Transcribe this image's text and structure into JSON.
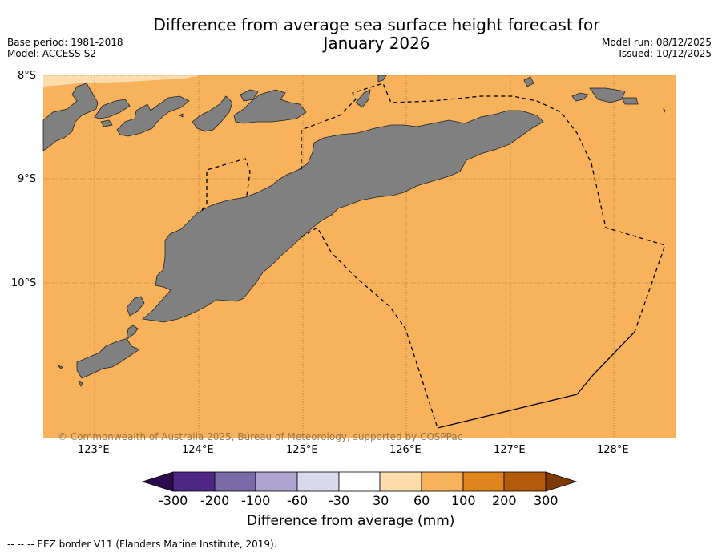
{
  "header": {
    "title_line1": "Difference from average sea surface height forecast for",
    "title_line2": "January 2026",
    "base_period": "Base period: 1981-2018",
    "model": "Model: ACCESS-S2",
    "model_run": "Model run: 08/12/2025",
    "issued": "Issued: 10/12/2025"
  },
  "map": {
    "lat_labels": [
      "8°S",
      "9°S",
      "10°S"
    ],
    "lon_labels": [
      "123°E",
      "124°E",
      "125°E",
      "126°E",
      "127°E",
      "128°E"
    ],
    "copyright": "© Commonwealth of Australia 2025, Bureau of Meteorology, supported by COSPPac",
    "colors": {
      "ocean": "#f8b25c",
      "ocean_light": "#fddcab",
      "land": "#808080"
    }
  },
  "colorbar": {
    "title": "Difference from average (mm)",
    "tick_labels": [
      "-300",
      "-200",
      "-100",
      "-60",
      "-30",
      "30",
      "60",
      "100",
      "200",
      "300"
    ],
    "colors": [
      "#2d0a4e",
      "#4f2685",
      "#7a6aa8",
      "#ada4cf",
      "#d9d9ec",
      "#ffffff",
      "#fddcab",
      "#f8b25c",
      "#e0841e",
      "#b45a0b",
      "#7d3a07"
    ]
  },
  "legend": {
    "eez": "--  --  -- EEZ border V11 (Flanders Marine Institute, 2019)."
  }
}
